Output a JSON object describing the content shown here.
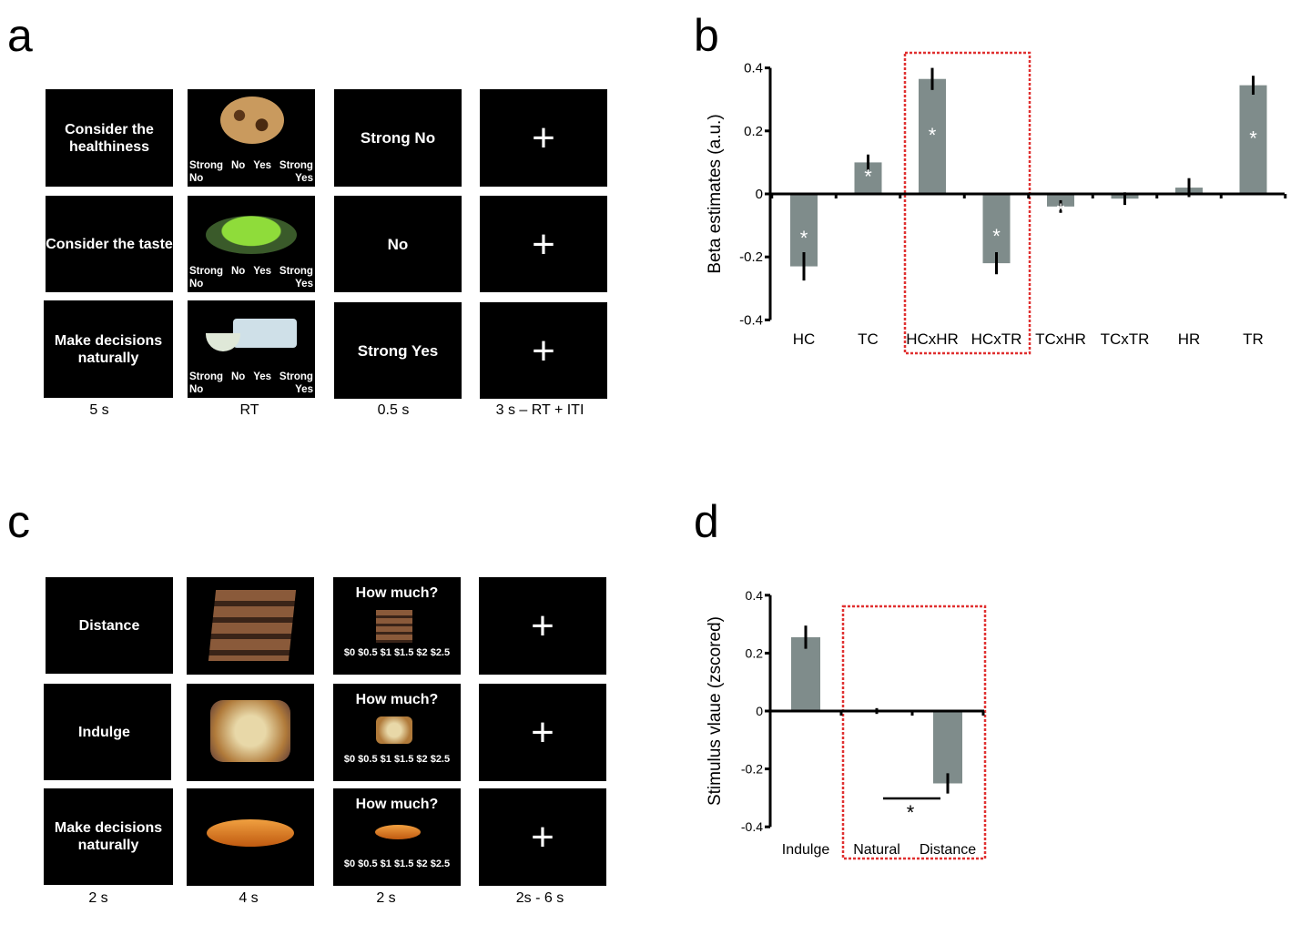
{
  "panels": {
    "a": "a",
    "b": "b",
    "c": "c",
    "d": "d"
  },
  "panel_a": {
    "instructions": [
      "Consider the healthiness",
      "Consider the taste",
      "Make decisions naturally"
    ],
    "responses": [
      "Strong No",
      "No",
      "Strong Yes"
    ],
    "scale": {
      "top": [
        "Strong",
        "No",
        "Yes",
        "Strong"
      ],
      "bottom_left": "No",
      "bottom_right": "Yes"
    },
    "fixation": "+",
    "timings": [
      "5 s",
      "RT",
      "0.5 s",
      "3 s – RT + ITI"
    ]
  },
  "panel_c": {
    "instructions": [
      "Distance",
      "Indulge",
      "Make decisions naturally"
    ],
    "question": "How much?",
    "price_scale": "$0 $0.5 $1 $1.5 $2 $2.5",
    "fixation": "+",
    "timings": [
      "2 s",
      "4 s",
      "2 s",
      "2s - 6 s"
    ]
  },
  "chart_data": [
    {
      "type": "bar",
      "ylabel": "Beta estimates (a.u.)",
      "ylim": [
        -0.4,
        0.4
      ],
      "yticks": [
        "0.4",
        "0.2",
        "0",
        "-0.2",
        "-0.4"
      ],
      "categories": [
        "HC",
        "TC",
        "HCxHR",
        "HCxTR",
        "TCxHR",
        "TCxTR",
        "HR",
        "TR"
      ],
      "values": [
        -0.23,
        0.1,
        0.365,
        -0.22,
        -0.04,
        -0.015,
        0.02,
        0.345
      ],
      "errors": [
        0.045,
        0.025,
        0.035,
        0.035,
        0.02,
        0.02,
        0.03,
        0.03
      ],
      "significant": [
        true,
        true,
        true,
        true,
        true,
        false,
        false,
        true
      ],
      "sig_marker": "*",
      "highlight": [
        "HCxHR",
        "HCxTR"
      ],
      "bar_color": "#7f8c8b",
      "highlight_color": "#e03030"
    },
    {
      "type": "bar",
      "ylabel": "Stimulus vlaue (zscored)",
      "ylim": [
        -0.4,
        0.4
      ],
      "yticks": [
        "0.4",
        "0.2",
        "0",
        "-0.2",
        "-0.4"
      ],
      "categories": [
        "Indulge",
        "Natural",
        "Distance"
      ],
      "values": [
        0.255,
        0.0,
        -0.25
      ],
      "errors": [
        0.04,
        0.01,
        0.035
      ],
      "comparison": {
        "between": [
          "Natural",
          "Distance"
        ],
        "marker": "*"
      },
      "highlight": [
        "Natural",
        "Distance"
      ],
      "bar_color": "#7f8c8b",
      "highlight_color": "#e03030"
    }
  ]
}
